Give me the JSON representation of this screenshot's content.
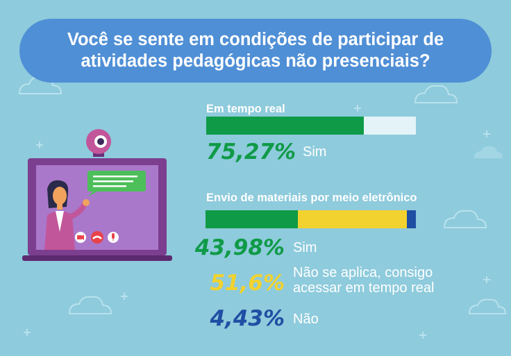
{
  "title": "Você se sente em condições de participar de atividades pedagógicas não presenciais?",
  "colors": {
    "background": "#8ecbdc",
    "title_bg": "#4f8fd6",
    "green": "#0f9a47",
    "yellow": "#f2d22e",
    "blue": "#1f4fa3",
    "bar_remainder": "#e3f3f8"
  },
  "chart_data": [
    {
      "type": "bar",
      "title": "Em tempo real",
      "orientation": "horizontal-stacked",
      "series": [
        {
          "name": "Sim",
          "value": 75.27,
          "label": "75,27%",
          "color": "#0f9a47"
        }
      ],
      "remainder_color": "#e3f3f8",
      "xlim": [
        0,
        100
      ]
    },
    {
      "type": "bar",
      "title": "Envio de materiais por meio eletrônico",
      "orientation": "horizontal-stacked",
      "series": [
        {
          "name": "Sim",
          "value": 43.98,
          "label": "43,98%",
          "color": "#0f9a47"
        },
        {
          "name": "Não se aplica, consigo acessar em tempo real",
          "line1": "Não se aplica, consigo",
          "line2": "acessar em tempo real",
          "value": 51.6,
          "label": "51,6%",
          "color": "#f2d22e"
        },
        {
          "name": "Não",
          "value": 4.43,
          "label": "4,43%",
          "color": "#1f4fa3"
        }
      ],
      "xlim": [
        0,
        100
      ]
    }
  ],
  "icons": [
    "cloud-icon",
    "webcam-icon",
    "laptop-icon",
    "chat-bubble-icon",
    "video-camera-icon",
    "hang-up-icon",
    "microphone-icon"
  ]
}
